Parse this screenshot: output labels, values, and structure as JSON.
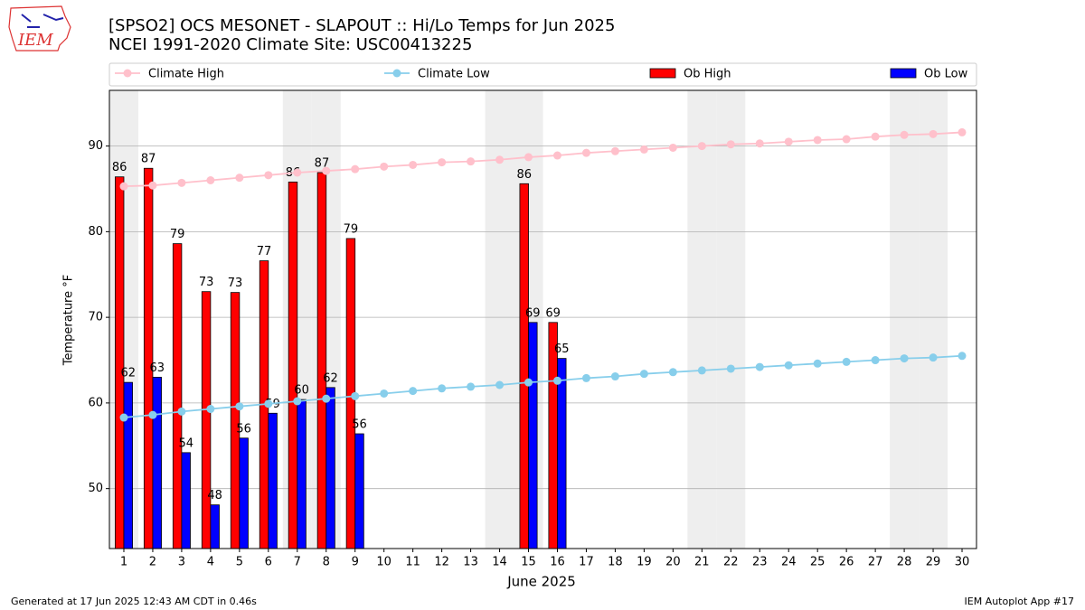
{
  "logo": "IEM",
  "footer": {
    "left": "Generated at 17 Jun 2025 12:43 AM CDT in 0.46s",
    "right": "IEM Autoplot App #17"
  },
  "chart_data": {
    "type": "bar",
    "title": [
      "[SPSO2] OCS MESONET - SLAPOUT :: Hi/Lo Temps for Jun 2025",
      "NCEI 1991-2020 Climate Site: USC00413225"
    ],
    "x_label": "June 2025",
    "y_label": "Temperature °F",
    "x": [
      1,
      2,
      3,
      4,
      5,
      6,
      7,
      8,
      9,
      10,
      11,
      12,
      13,
      14,
      15,
      16,
      17,
      18,
      19,
      20,
      21,
      22,
      23,
      24,
      25,
      26,
      27,
      28,
      29,
      30
    ],
    "xlim": [
      0.5,
      30.5
    ],
    "xticks": [
      1,
      2,
      3,
      4,
      5,
      6,
      7,
      8,
      9,
      10,
      11,
      12,
      13,
      14,
      15,
      16,
      17,
      18,
      19,
      20,
      21,
      22,
      23,
      24,
      25,
      26,
      27,
      28,
      29,
      30
    ],
    "ylim": [
      43,
      96.5
    ],
    "yticks": [
      50,
      60,
      70,
      80,
      90
    ],
    "grid": true,
    "highlight_days": [
      1,
      7,
      8,
      14,
      15,
      21,
      22,
      28,
      29
    ],
    "highlight_color": "#eeeeee",
    "legend": "top",
    "series": [
      {
        "name": "Climate High",
        "type": "line",
        "color": "#ffc0cb",
        "values": [
          85.3,
          85.4,
          85.7,
          86.0,
          86.3,
          86.6,
          86.9,
          87.1,
          87.3,
          87.6,
          87.8,
          88.1,
          88.2,
          88.4,
          88.7,
          88.9,
          89.2,
          89.4,
          89.6,
          89.8,
          90.0,
          90.2,
          90.3,
          90.5,
          90.7,
          90.8,
          91.1,
          91.3,
          91.4,
          91.6
        ]
      },
      {
        "name": "Climate Low",
        "type": "line",
        "color": "#87ceeb",
        "values": [
          58.3,
          58.6,
          59.0,
          59.3,
          59.6,
          59.9,
          60.2,
          60.5,
          60.8,
          61.1,
          61.4,
          61.7,
          61.9,
          62.1,
          62.4,
          62.6,
          62.9,
          63.1,
          63.4,
          63.6,
          63.8,
          64.0,
          64.2,
          64.4,
          64.6,
          64.8,
          65.0,
          65.2,
          65.3,
          65.5
        ]
      },
      {
        "name": "Ob High",
        "type": "bar",
        "color": "#ff0000",
        "values": [
          86.4,
          87.4,
          78.6,
          73.0,
          72.9,
          76.6,
          85.8,
          86.9,
          79.2,
          null,
          null,
          null,
          null,
          null,
          85.6,
          69.4,
          null,
          null,
          null,
          null,
          null,
          null,
          null,
          null,
          null,
          null,
          null,
          null,
          null,
          null
        ],
        "value_labels": [
          "86",
          "87",
          "79",
          "73",
          "73",
          "77",
          "86",
          "87",
          "79",
          null,
          null,
          null,
          null,
          null,
          "86",
          "69",
          null,
          null,
          null,
          null,
          null,
          null,
          null,
          null,
          null,
          null,
          null,
          null,
          null,
          null
        ]
      },
      {
        "name": "Ob Low",
        "type": "bar",
        "color": "#0000ff",
        "values": [
          62.4,
          63.0,
          54.2,
          48.1,
          55.9,
          58.8,
          60.4,
          61.8,
          56.4,
          null,
          null,
          null,
          null,
          null,
          69.4,
          65.2,
          null,
          null,
          null,
          null,
          null,
          null,
          null,
          null,
          null,
          null,
          null,
          null,
          null,
          null
        ],
        "value_labels": [
          "62",
          "63",
          "54",
          "48",
          "56",
          "59",
          "60",
          "62",
          "56",
          null,
          null,
          null,
          null,
          null,
          "69",
          "65",
          null,
          null,
          null,
          null,
          null,
          null,
          null,
          null,
          null,
          null,
          null,
          null,
          null,
          null
        ]
      }
    ]
  }
}
